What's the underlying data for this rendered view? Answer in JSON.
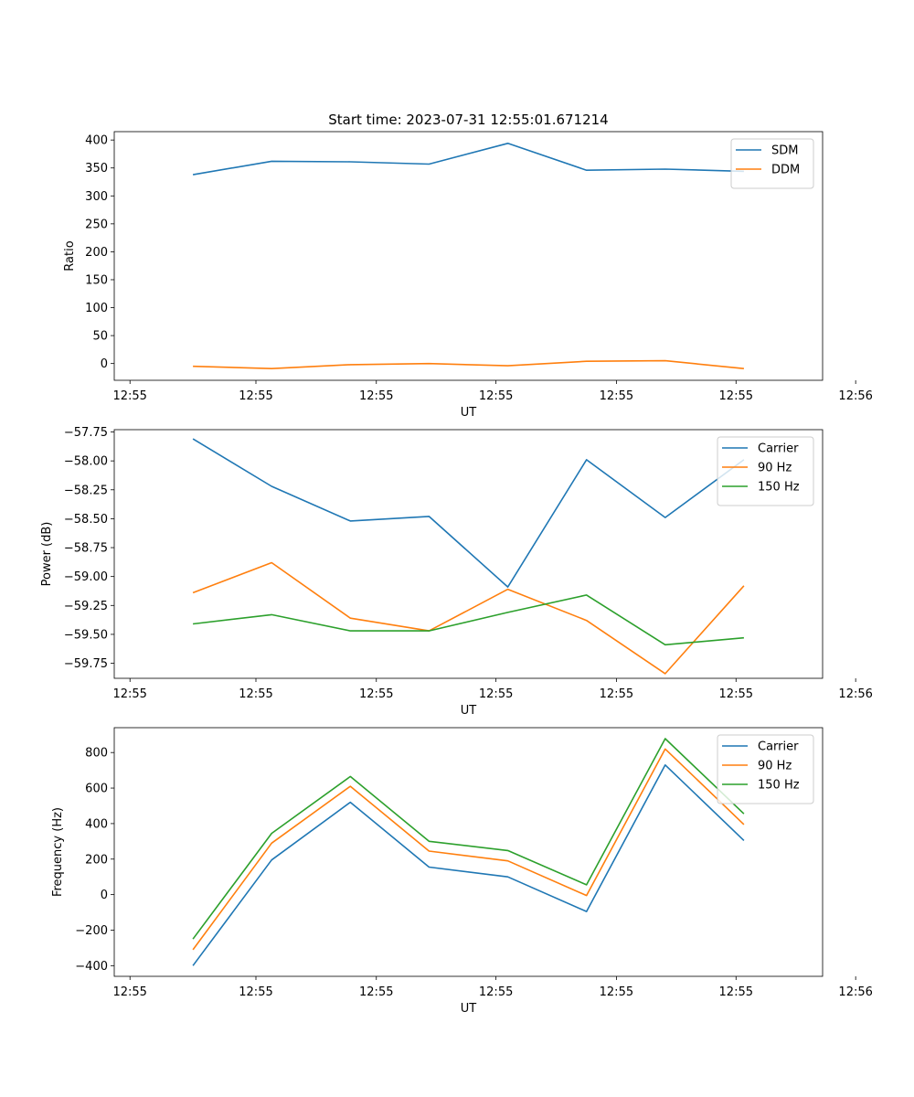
{
  "chart_data": [
    {
      "type": "line",
      "title": "Start time: 2023-07-31 12:55:01.671214",
      "xlabel": "UT",
      "ylabel": "Ratio",
      "x": [
        1,
        2,
        3,
        4,
        5,
        6,
        7,
        8
      ],
      "xlim": [
        0,
        9
      ],
      "x_ticks": [
        0.2,
        1.8,
        3.33,
        4.85,
        6.38,
        7.9,
        9.42
      ],
      "x_tick_labels": [
        "12:55",
        "12:55",
        "12:55",
        "12:55",
        "12:55",
        "12:55",
        "12:56"
      ],
      "ylim": [
        -30,
        415
      ],
      "y_ticks": [
        0,
        50,
        100,
        150,
        200,
        250,
        300,
        350,
        400
      ],
      "y_tick_labels": [
        "0",
        "50",
        "100",
        "150",
        "200",
        "250",
        "300",
        "350",
        "400"
      ],
      "legend_position": "top-right",
      "series": [
        {
          "name": "SDM",
          "color": "#1f77b4",
          "values": [
            338,
            362,
            361,
            357,
            394,
            346,
            348,
            344
          ]
        },
        {
          "name": "DDM",
          "color": "#ff7f0e",
          "values": [
            -5,
            -9,
            -2,
            0,
            -4,
            4,
            5,
            -9
          ]
        }
      ]
    },
    {
      "type": "line",
      "title": "",
      "xlabel": "UT",
      "ylabel": "Power (dB)",
      "x": [
        1,
        2,
        3,
        4,
        5,
        6,
        7,
        8
      ],
      "xlim": [
        0,
        9
      ],
      "x_ticks": [
        0.2,
        1.8,
        3.33,
        4.85,
        6.38,
        7.9,
        9.42
      ],
      "x_tick_labels": [
        "12:55",
        "12:55",
        "12:55",
        "12:55",
        "12:55",
        "12:55",
        "12:56"
      ],
      "ylim": [
        -59.88,
        -57.73
      ],
      "y_ticks": [
        -59.75,
        -59.5,
        -59.25,
        -59.0,
        -58.75,
        -58.5,
        -58.25,
        -58.0,
        -57.75
      ],
      "y_tick_labels": [
        "−59.75",
        "−59.50",
        "−59.25",
        "−59.00",
        "−58.75",
        "−58.50",
        "−58.25",
        "−58.00",
        "−57.75"
      ],
      "legend_position": "top-right",
      "series": [
        {
          "name": "Carrier",
          "color": "#1f77b4",
          "values": [
            -57.81,
            -58.22,
            -58.52,
            -58.48,
            -59.09,
            -57.99,
            -58.49,
            -57.99
          ]
        },
        {
          "name": "90 Hz",
          "color": "#ff7f0e",
          "values": [
            -59.14,
            -58.88,
            -59.36,
            -59.47,
            -59.11,
            -59.38,
            -59.84,
            -59.08
          ]
        },
        {
          "name": "150 Hz",
          "color": "#2ca02c",
          "values": [
            -59.41,
            -59.33,
            -59.47,
            -59.47,
            -59.31,
            -59.16,
            -59.59,
            -59.53
          ]
        }
      ]
    },
    {
      "type": "line",
      "title": "",
      "xlabel": "UT",
      "ylabel": "Frequency (Hz)",
      "x": [
        1,
        2,
        3,
        4,
        5,
        6,
        7,
        8
      ],
      "xlim": [
        0,
        9
      ],
      "x_ticks": [
        0.2,
        1.8,
        3.33,
        4.85,
        6.38,
        7.9,
        9.42
      ],
      "x_tick_labels": [
        "12:55",
        "12:55",
        "12:55",
        "12:55",
        "12:55",
        "12:55",
        "12:56"
      ],
      "ylim": [
        -460,
        940
      ],
      "y_ticks": [
        -400,
        -200,
        0,
        200,
        400,
        600,
        800
      ],
      "y_tick_labels": [
        "−400",
        "−200",
        "0",
        "200",
        "400",
        "600",
        "800"
      ],
      "legend_position": "top-right",
      "series": [
        {
          "name": "Carrier",
          "color": "#1f77b4",
          "values": [
            -400,
            195,
            520,
            155,
            100,
            -95,
            730,
            305
          ]
        },
        {
          "name": "90 Hz",
          "color": "#ff7f0e",
          "values": [
            -310,
            290,
            610,
            245,
            190,
            -5,
            820,
            395
          ]
        },
        {
          "name": "150 Hz",
          "color": "#2ca02c",
          "values": [
            -250,
            345,
            665,
            300,
            248,
            55,
            878,
            455
          ]
        }
      ]
    }
  ]
}
